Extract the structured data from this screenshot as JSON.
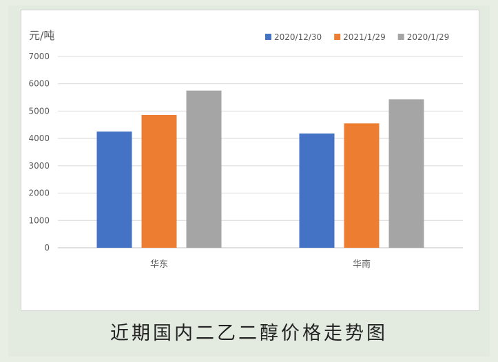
{
  "chart_data": {
    "type": "bar",
    "title": "",
    "ylabel": "元/吨",
    "xlabel": "",
    "categories": [
      "华东",
      "华南"
    ],
    "ylim": [
      0,
      7000
    ],
    "yticks": [
      0,
      1000,
      2000,
      3000,
      4000,
      5000,
      6000,
      7000
    ],
    "grid": true,
    "legend_position": "top-right",
    "series": [
      {
        "name": "2020/12/30",
        "color": "#4472c4",
        "values": [
          4250,
          4180
        ]
      },
      {
        "name": "2021/1/29",
        "color": "#ed7d31",
        "values": [
          4860,
          4550
        ]
      },
      {
        "name": "2020/1/29",
        "color": "#a5a5a5",
        "values": [
          5750,
          5430
        ]
      }
    ]
  },
  "caption": "近期国内二乙二醇价格走势图"
}
